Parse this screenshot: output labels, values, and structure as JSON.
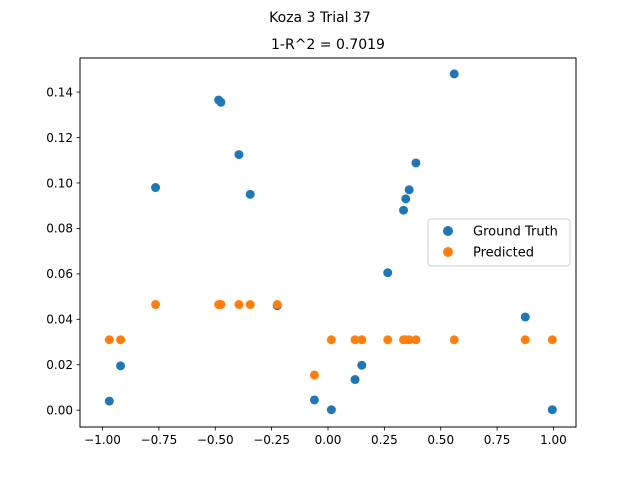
{
  "chart_data": {
    "type": "scatter",
    "suptitle": "Koza 3 Trial 37",
    "title": "1-R^2 = 0.7019",
    "xlabel": "",
    "ylabel": "",
    "xlim": [
      -1.1,
      1.1
    ],
    "ylim": [
      -0.0074,
      0.155
    ],
    "xticks": [
      -1.0,
      -0.75,
      -0.5,
      -0.25,
      0.0,
      0.25,
      0.5,
      0.75,
      1.0
    ],
    "xtick_labels": [
      "−1.00",
      "−0.75",
      "−0.50",
      "−0.25",
      "0.00",
      "0.25",
      "0.50",
      "0.75",
      "1.00"
    ],
    "yticks": [
      0.0,
      0.02,
      0.04,
      0.06,
      0.08,
      0.1,
      0.12,
      0.14
    ],
    "ytick_labels": [
      "0.00",
      "0.02",
      "0.04",
      "0.06",
      "0.08",
      "0.10",
      "0.12",
      "0.14"
    ],
    "grid": false,
    "legend_position": "center-right",
    "series": [
      {
        "name": "Ground Truth",
        "color": "#1f77b4",
        "points": [
          [
            -0.97,
            0.004
          ],
          [
            -0.92,
            0.0195
          ],
          [
            -0.765,
            0.098
          ],
          [
            -0.485,
            0.1365
          ],
          [
            -0.475,
            0.1355
          ],
          [
            -0.395,
            0.1125
          ],
          [
            -0.345,
            0.095
          ],
          [
            -0.225,
            0.046
          ],
          [
            -0.06,
            0.0045
          ],
          [
            0.015,
            0.0002
          ],
          [
            0.12,
            0.0135
          ],
          [
            0.15,
            0.0198
          ],
          [
            0.265,
            0.0605
          ],
          [
            0.335,
            0.088
          ],
          [
            0.345,
            0.093
          ],
          [
            0.36,
            0.097
          ],
          [
            0.39,
            0.1088
          ],
          [
            0.56,
            0.148
          ],
          [
            0.875,
            0.041
          ],
          [
            0.995,
            0.0002
          ]
        ]
      },
      {
        "name": "Predicted",
        "color": "#ff7f0e",
        "points": [
          [
            -0.97,
            0.031
          ],
          [
            -0.92,
            0.031
          ],
          [
            -0.765,
            0.0465
          ],
          [
            -0.485,
            0.0465
          ],
          [
            -0.475,
            0.0465
          ],
          [
            -0.395,
            0.0465
          ],
          [
            -0.345,
            0.0465
          ],
          [
            -0.225,
            0.0465
          ],
          [
            -0.06,
            0.0155
          ],
          [
            0.015,
            0.031
          ],
          [
            0.12,
            0.031
          ],
          [
            0.15,
            0.031
          ],
          [
            0.265,
            0.031
          ],
          [
            0.335,
            0.031
          ],
          [
            0.345,
            0.031
          ],
          [
            0.36,
            0.031
          ],
          [
            0.39,
            0.031
          ],
          [
            0.56,
            0.031
          ],
          [
            0.875,
            0.031
          ],
          [
            0.995,
            0.031
          ]
        ]
      }
    ]
  }
}
